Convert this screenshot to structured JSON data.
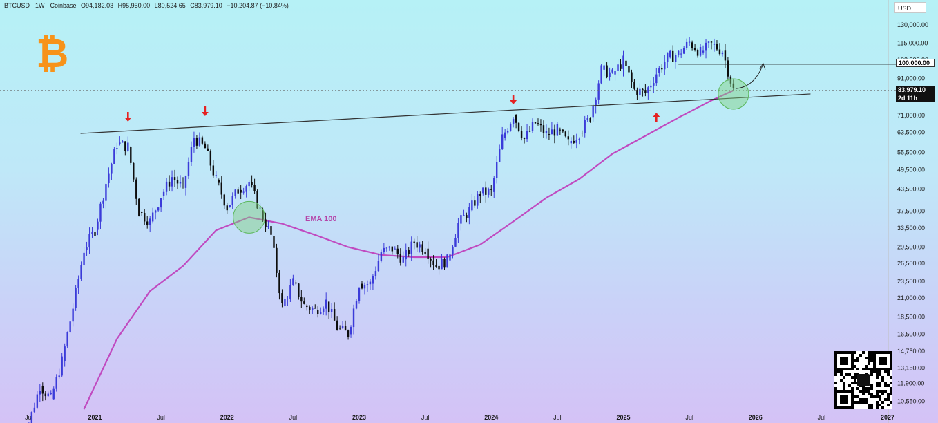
{
  "header": {
    "symbol": "BTCUSD · 1W · Coinbase",
    "open": "O94,182.03",
    "high": "H95,950.00",
    "low": "L80,524.65",
    "close": "C83,979.10",
    "change": "−10,204.87 (−10.84%)"
  },
  "currency": "USD",
  "resistance_price": "100,000.00",
  "last_price": "83,979.10",
  "countdown": "2d 11h",
  "ema_label": "EMA 100",
  "logo_glyph": "₿",
  "colors": {
    "up_candle": "#3b3bd9",
    "down_candle": "#0d0d0d",
    "ema": "#c04ac0",
    "arrow": "#e52222",
    "circle": "#7fd17f",
    "logo": "#f7931a"
  },
  "icons": [
    "bitcoin-logo",
    "down-arrow-icon",
    "up-arrow-icon",
    "curved-arrow-icon",
    "qr-code"
  ],
  "chart_data": {
    "type": "candlestick",
    "title": "",
    "xlabel": "",
    "ylabel": "",
    "y_scale": "log",
    "ylim": [
      10000,
      140000
    ],
    "yticks": [
      "130,000.00",
      "115,000.00",
      "103,000.00",
      "91,000.00",
      "81,000.00",
      "71,000.00",
      "63,500.00",
      "55,500.00",
      "49,500.00",
      "43,500.00",
      "37,500.00",
      "33,500.00",
      "29,500.00",
      "26,500.00",
      "23,500.00",
      "21,000.00",
      "18,500.00",
      "16,500.00",
      "14,750.00",
      "13,150.00",
      "11,900.00",
      "10,550.00"
    ],
    "xticks": [
      "Jul",
      "2021",
      "Jul",
      "2022",
      "Jul",
      "2023",
      "Jul",
      "2024",
      "Jul",
      "2025",
      "Jul",
      "2026",
      "Jul",
      "2027"
    ],
    "xlim": [
      "2020-05",
      "2027-01"
    ],
    "series": [
      {
        "name": "BTCUSD",
        "points": [
          [
            "2020-07",
            9100
          ],
          [
            "2020-08",
            11700
          ],
          [
            "2020-09",
            10700
          ],
          [
            "2020-10",
            13800
          ],
          [
            "2020-11",
            19700
          ],
          [
            "2020-12",
            29000
          ],
          [
            "2021-01",
            33100
          ],
          [
            "2021-02",
            45200
          ],
          [
            "2021-03",
            58800
          ],
          [
            "2021-04",
            57700
          ],
          [
            "2021-05",
            37300
          ],
          [
            "2021-06",
            35000
          ],
          [
            "2021-07",
            41500
          ],
          [
            "2021-08",
            47100
          ],
          [
            "2021-09",
            43800
          ],
          [
            "2021-10",
            61300
          ],
          [
            "2021-11",
            57000
          ],
          [
            "2021-12",
            46200
          ],
          [
            "2022-01",
            38500
          ],
          [
            "2022-02",
            43200
          ],
          [
            "2022-03",
            45500
          ],
          [
            "2022-04",
            37700
          ],
          [
            "2022-05",
            31800
          ],
          [
            "2022-06",
            19900
          ],
          [
            "2022-07",
            23300
          ],
          [
            "2022-08",
            20000
          ],
          [
            "2022-09",
            19400
          ],
          [
            "2022-10",
            20500
          ],
          [
            "2022-11",
            17200
          ],
          [
            "2022-12",
            16500
          ],
          [
            "2023-01",
            23100
          ],
          [
            "2023-02",
            23100
          ],
          [
            "2023-03",
            28500
          ],
          [
            "2023-04",
            29200
          ],
          [
            "2023-05",
            27200
          ],
          [
            "2023-06",
            30500
          ],
          [
            "2023-07",
            29200
          ],
          [
            "2023-08",
            26000
          ],
          [
            "2023-09",
            27000
          ],
          [
            "2023-10",
            34500
          ],
          [
            "2023-11",
            37700
          ],
          [
            "2023-12",
            42300
          ],
          [
            "2024-01",
            42600
          ],
          [
            "2024-02",
            61200
          ],
          [
            "2024-03",
            71300
          ],
          [
            "2024-04",
            60700
          ],
          [
            "2024-05",
            67500
          ],
          [
            "2024-06",
            62700
          ],
          [
            "2024-07",
            64600
          ],
          [
            "2024-08",
            59000
          ],
          [
            "2024-09",
            63300
          ],
          [
            "2024-10",
            70300
          ],
          [
            "2024-11",
            96400
          ],
          [
            "2024-12",
            93400
          ],
          [
            "2025-01",
            102400
          ],
          [
            "2025-02",
            84300
          ],
          [
            "2025-03",
            82500
          ],
          [
            "2025-04",
            94200
          ],
          [
            "2025-05",
            104600
          ],
          [
            "2025-06",
            107100
          ],
          [
            "2025-07",
            115700
          ],
          [
            "2025-08",
            108200
          ],
          [
            "2025-09",
            114000
          ],
          [
            "2025-10",
            109500
          ],
          [
            "2025-11",
            83979
          ]
        ]
      },
      {
        "name": "EMA 100",
        "points": [
          [
            "2020-12",
            10000
          ],
          [
            "2021-03",
            16000
          ],
          [
            "2021-06",
            22000
          ],
          [
            "2021-09",
            26000
          ],
          [
            "2021-12",
            33000
          ],
          [
            "2022-03",
            36000
          ],
          [
            "2022-06",
            34500
          ],
          [
            "2022-09",
            32000
          ],
          [
            "2022-12",
            29500
          ],
          [
            "2023-03",
            28000
          ],
          [
            "2023-06",
            27600
          ],
          [
            "2023-09",
            27600
          ],
          [
            "2023-12",
            30000
          ],
          [
            "2024-03",
            35000
          ],
          [
            "2024-06",
            41000
          ],
          [
            "2024-09",
            46500
          ],
          [
            "2024-12",
            55000
          ],
          [
            "2025-03",
            62000
          ],
          [
            "2025-06",
            70000
          ],
          [
            "2025-09",
            78500
          ],
          [
            "2025-11",
            84000
          ]
        ]
      }
    ],
    "trendline": [
      [
        "2020-12",
        63000
      ],
      [
        "2026-06",
        82000
      ]
    ],
    "resistance_line": 100000,
    "annotations": [
      "down arrow 2021-04",
      "down arrow 2021-11",
      "down arrow 2024-03",
      "up arrow 2025-04",
      "circle 2022-03",
      "circle 2025-11",
      "curved arrow 2025-11"
    ],
    "legend": "none",
    "grid": false
  }
}
